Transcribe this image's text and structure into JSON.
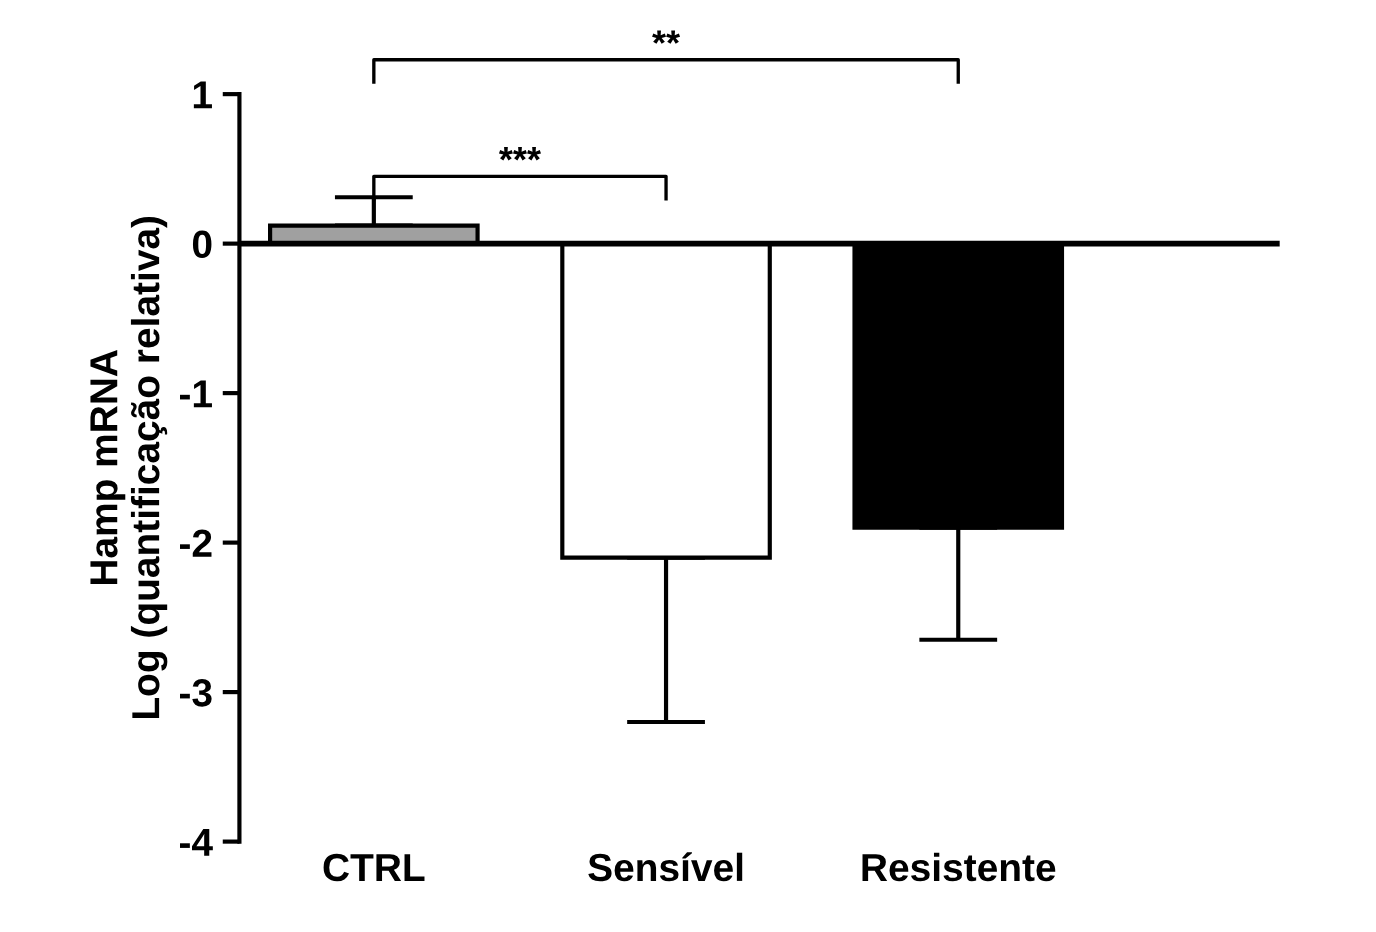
{
  "chart_data": {
    "type": "bar",
    "ylabel": "Hamp mRNA\nLog (quantificação relativa)",
    "categories": [
      "CTRL",
      "Sensível",
      "Resistente"
    ],
    "values": [
      0.12,
      -2.1,
      -1.9
    ],
    "colors": [
      "#a0a0a0",
      "#ffffff",
      "#000000"
    ],
    "errors": [
      [
        0.12,
        0.31
      ],
      [
        -3.2,
        -2.1
      ],
      [
        -2.65,
        -1.9
      ]
    ],
    "ylim": [
      -4,
      1
    ],
    "yticks": [
      {
        "value": -4,
        "label": "-4"
      },
      {
        "value": -3,
        "label": "-3"
      },
      {
        "value": -2,
        "label": "-2"
      },
      {
        "value": -1,
        "label": "-1"
      },
      0,
      1
    ],
    "grid": false,
    "legend": false,
    "ref_lines": [
      {
        "axis": "y",
        "value": 0,
        "color": "#000000",
        "line_style": "solid"
      }
    ],
    "annotations": [
      "***",
      "**"
    ]
  }
}
